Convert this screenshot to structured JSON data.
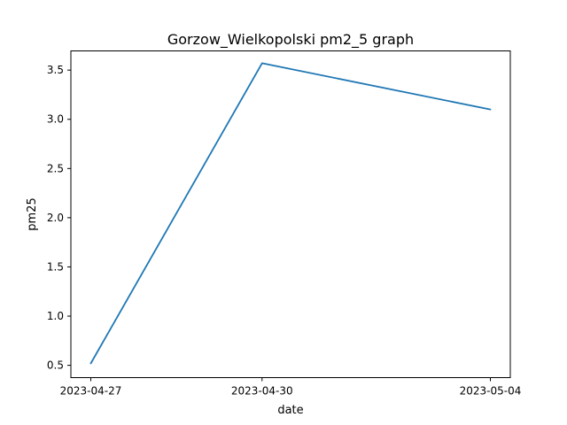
{
  "chart_data": {
    "type": "line",
    "title": "Gorzow_Wielkopolski pm2_5 graph",
    "xlabel": "date",
    "ylabel": "pm25",
    "categories": [
      "2023-04-27",
      "2023-04-30",
      "2023-05-04"
    ],
    "series": [
      {
        "values": [
          0.52,
          3.57,
          3.1
        ],
        "color": "#1f77b4"
      }
    ],
    "ylim": [
      0.375,
      3.695
    ],
    "yticks": [
      0.5,
      1.0,
      1.5,
      2.0,
      2.5,
      3.0,
      3.5
    ],
    "ytick_labels": [
      "0.5",
      "1.0",
      "1.5",
      "2.0",
      "2.5",
      "3.0",
      "3.5"
    ],
    "grid": false,
    "legend": "none"
  }
}
